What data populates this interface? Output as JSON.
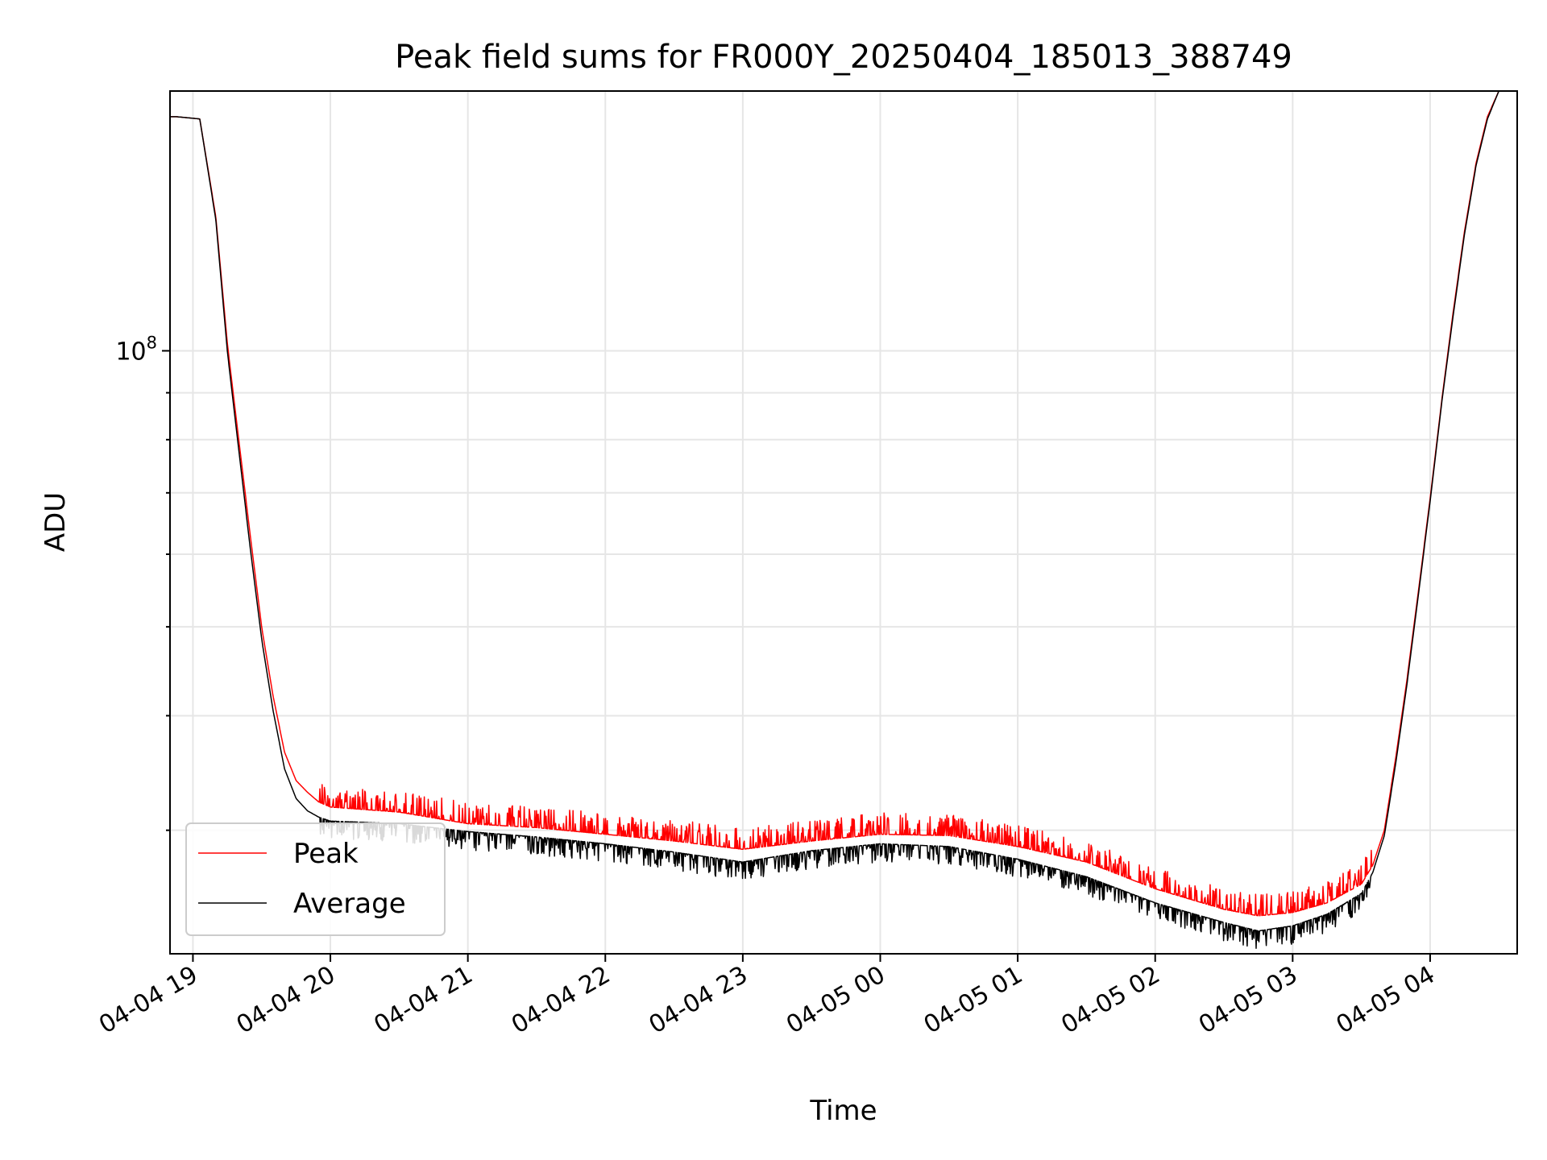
{
  "chart_data": {
    "type": "line",
    "title": "Peak field sums for FR000Y_20250404_185013_388749",
    "xlabel": "Time",
    "ylabel": "ADU",
    "yscale": "log",
    "xlim": [
      "2025-04-04 18:50",
      "2025-04-05 04:38"
    ],
    "ylim": [
      22000000,
      192000000
    ],
    "x_ticks": [
      "04-04 19",
      "04-04 20",
      "04-04 21",
      "04-04 22",
      "04-04 23",
      "04-05 00",
      "04-05 01",
      "04-05 02",
      "04-05 03",
      "04-05 04"
    ],
    "y_ticks": [
      "10^8"
    ],
    "grid": true,
    "legend_position": "lower-left",
    "series": [
      {
        "name": "Peak",
        "color": "#ff0000",
        "x": [
          "2025-04-04 18:50",
          "2025-04-04 18:53",
          "2025-04-04 19:03",
          "2025-04-04 19:10",
          "2025-04-04 19:15",
          "2025-04-04 19:20",
          "2025-04-04 19:25",
          "2025-04-04 19:30",
          "2025-04-04 19:35",
          "2025-04-04 19:40",
          "2025-04-04 19:45",
          "2025-04-04 19:50",
          "2025-04-04 19:55",
          "2025-04-04 20:00",
          "2025-04-04 20:30",
          "2025-04-04 21:00",
          "2025-04-04 21:30",
          "2025-04-04 22:00",
          "2025-04-04 22:30",
          "2025-04-04 23:00",
          "2025-04-04 23:30",
          "2025-04-05 00:00",
          "2025-04-05 00:30",
          "2025-04-05 01:00",
          "2025-04-05 01:30",
          "2025-04-05 02:00",
          "2025-04-05 02:30",
          "2025-04-05 02:45",
          "2025-04-05 03:00",
          "2025-04-05 03:15",
          "2025-04-05 03:30",
          "2025-04-05 03:35",
          "2025-04-05 03:40",
          "2025-04-05 03:45",
          "2025-04-05 03:50",
          "2025-04-05 03:55",
          "2025-04-05 04:00",
          "2025-04-05 04:05",
          "2025-04-05 04:10",
          "2025-04-05 04:15",
          "2025-04-05 04:20",
          "2025-04-05 04:25",
          "2025-04-05 04:30",
          "2025-04-05 04:38"
        ],
        "y": [
          180000000,
          180000000,
          179000000,
          140000000,
          102000000,
          80000000,
          63000000,
          50000000,
          42000000,
          36500000,
          34000000,
          33000000,
          32200000,
          31800000,
          31400000,
          30500000,
          30200000,
          29700000,
          29200000,
          28600000,
          29200000,
          29700000,
          29600000,
          28800000,
          27700000,
          25900000,
          24600000,
          24200000,
          24400000,
          25000000,
          26200000,
          27500000,
          30000000,
          36000000,
          44000000,
          55000000,
          69000000,
          88000000,
          110000000,
          135000000,
          160000000,
          180000000,
          192000000,
          192000000
        ]
      },
      {
        "name": "Average",
        "color": "#000000",
        "x": [
          "2025-04-04 18:50",
          "2025-04-04 18:53",
          "2025-04-04 19:03",
          "2025-04-04 19:10",
          "2025-04-04 19:15",
          "2025-04-04 19:20",
          "2025-04-04 19:25",
          "2025-04-04 19:30",
          "2025-04-04 19:35",
          "2025-04-04 19:40",
          "2025-04-04 19:45",
          "2025-04-04 19:50",
          "2025-04-04 19:55",
          "2025-04-04 20:00",
          "2025-04-04 20:30",
          "2025-04-04 21:00",
          "2025-04-04 21:30",
          "2025-04-04 22:00",
          "2025-04-04 22:30",
          "2025-04-04 23:00",
          "2025-04-04 23:30",
          "2025-04-05 00:00",
          "2025-04-05 00:30",
          "2025-04-05 01:00",
          "2025-04-05 01:30",
          "2025-04-05 02:00",
          "2025-04-05 02:30",
          "2025-04-05 02:45",
          "2025-04-05 03:00",
          "2025-04-05 03:15",
          "2025-04-05 03:30",
          "2025-04-05 03:35",
          "2025-04-05 03:40",
          "2025-04-05 03:45",
          "2025-04-05 03:50",
          "2025-04-05 03:55",
          "2025-04-05 04:00",
          "2025-04-05 04:05",
          "2025-04-05 04:10",
          "2025-04-05 04:15",
          "2025-04-05 04:20",
          "2025-04-05 04:25",
          "2025-04-05 04:30",
          "2025-04-05 04:38"
        ],
        "y": [
          180000000,
          180000000,
          179000000,
          139000000,
          100000000,
          78000000,
          61000000,
          48500000,
          40500000,
          35000000,
          32500000,
          31500000,
          31000000,
          30700000,
          30500000,
          29900000,
          29500000,
          29000000,
          28400000,
          27700000,
          28500000,
          29000000,
          28800000,
          27900000,
          26700000,
          25000000,
          23800000,
          23300000,
          23600000,
          24300000,
          25600000,
          27000000,
          29600000,
          35500000,
          43500000,
          54500000,
          68500000,
          87500000,
          109000000,
          134000000,
          159000000,
          179000000,
          192000000,
          192000000
        ]
      }
    ]
  }
}
